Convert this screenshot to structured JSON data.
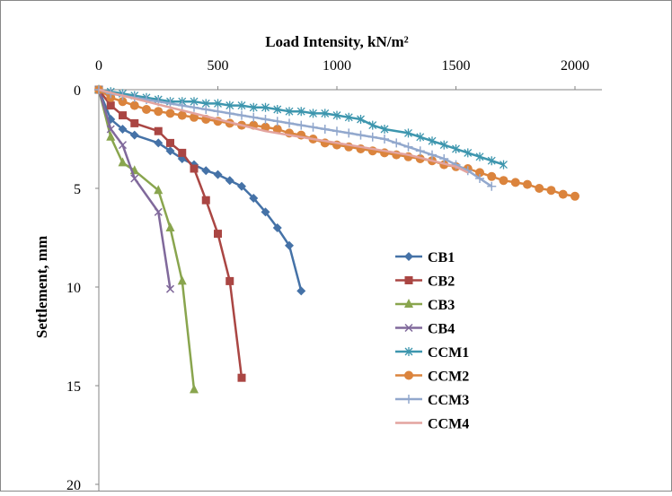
{
  "chart_data": {
    "type": "line",
    "xlabel": "Load Intensity, kN/m²",
    "ylabel": "Settlement, mm",
    "xlim": [
      0,
      2000
    ],
    "ylim": [
      0,
      20
    ],
    "y_inverted": true,
    "x_axis_position": "top",
    "xticks": [
      "0",
      "500",
      "1000",
      "1500",
      "2000"
    ],
    "yticks": [
      "0",
      "5",
      "10",
      "15",
      "20"
    ],
    "grid": false,
    "legend_position": "right-middle",
    "series": [
      {
        "name": "CB1",
        "color": "#4572A7",
        "marker": "diamond",
        "x": [
          0,
          50,
          100,
          150,
          250,
          300,
          350,
          400,
          450,
          500,
          550,
          600,
          650,
          700,
          750,
          800,
          850
        ],
        "y": [
          0,
          1.5,
          2.0,
          2.3,
          2.7,
          3.1,
          3.5,
          3.8,
          4.1,
          4.3,
          4.6,
          4.9,
          5.5,
          6.2,
          7.0,
          7.9,
          10.2
        ]
      },
      {
        "name": "CB2",
        "color": "#AA4643",
        "marker": "square",
        "x": [
          0,
          50,
          100,
          150,
          250,
          300,
          350,
          400,
          450,
          500,
          550,
          600
        ],
        "y": [
          0,
          0.8,
          1.3,
          1.7,
          2.1,
          2.7,
          3.2,
          4.0,
          5.6,
          7.3,
          9.7,
          14.6
        ]
      },
      {
        "name": "CB3",
        "color": "#89A54E",
        "marker": "triangle",
        "x": [
          0,
          50,
          100,
          150,
          250,
          300,
          350,
          400
        ],
        "y": [
          0,
          2.4,
          3.7,
          4.1,
          5.1,
          7.0,
          9.7,
          15.2
        ]
      },
      {
        "name": "CB4",
        "color": "#80699B",
        "marker": "x",
        "x": [
          0,
          50,
          100,
          150,
          250,
          300
        ],
        "y": [
          0,
          2.0,
          2.8,
          4.5,
          6.2,
          10.1
        ]
      },
      {
        "name": "CCM1",
        "color": "#3D96AE",
        "marker": "asterisk",
        "x": [
          0,
          50,
          100,
          150,
          200,
          250,
          300,
          350,
          400,
          450,
          500,
          550,
          600,
          650,
          700,
          750,
          800,
          850,
          900,
          950,
          1000,
          1050,
          1100,
          1150,
          1200,
          1300,
          1350,
          1400,
          1450,
          1500,
          1550,
          1600,
          1650,
          1700
        ],
        "y": [
          0,
          0.1,
          0.2,
          0.3,
          0.4,
          0.5,
          0.6,
          0.6,
          0.6,
          0.7,
          0.7,
          0.8,
          0.8,
          0.9,
          0.9,
          1.0,
          1.1,
          1.1,
          1.2,
          1.2,
          1.3,
          1.4,
          1.5,
          1.8,
          2.0,
          2.2,
          2.4,
          2.6,
          2.8,
          3.0,
          3.2,
          3.4,
          3.6,
          3.8
        ]
      },
      {
        "name": "CCM2",
        "color": "#DB843D",
        "marker": "circle",
        "x": [
          0,
          50,
          100,
          150,
          200,
          250,
          300,
          350,
          400,
          450,
          500,
          550,
          600,
          650,
          700,
          750,
          800,
          850,
          900,
          950,
          1000,
          1050,
          1100,
          1150,
          1200,
          1250,
          1300,
          1350,
          1400,
          1450,
          1500,
          1550,
          1600,
          1650,
          1700,
          1750,
          1800,
          1850,
          1900,
          1950,
          2000
        ],
        "y": [
          0,
          0.4,
          0.6,
          0.8,
          1.0,
          1.1,
          1.2,
          1.3,
          1.4,
          1.5,
          1.6,
          1.7,
          1.8,
          1.8,
          1.9,
          2.0,
          2.2,
          2.3,
          2.5,
          2.7,
          2.8,
          2.9,
          3.0,
          3.1,
          3.2,
          3.3,
          3.4,
          3.5,
          3.6,
          3.8,
          3.9,
          4.0,
          4.2,
          4.4,
          4.6,
          4.7,
          4.8,
          5.0,
          5.1,
          5.3,
          5.4
        ]
      },
      {
        "name": "CCM3",
        "color": "#92A8CD",
        "marker": "plus",
        "x": [
          0,
          50,
          100,
          150,
          200,
          250,
          300,
          350,
          400,
          450,
          500,
          550,
          600,
          650,
          700,
          750,
          800,
          850,
          900,
          950,
          1000,
          1050,
          1100,
          1150,
          1200,
          1250,
          1300,
          1350,
          1400,
          1450,
          1500,
          1550,
          1600,
          1650
        ],
        "y": [
          0,
          0.2,
          0.3,
          0.4,
          0.5,
          0.6,
          0.7,
          0.8,
          0.9,
          1.0,
          1.1,
          1.2,
          1.3,
          1.4,
          1.5,
          1.6,
          1.7,
          1.8,
          1.9,
          2.0,
          2.1,
          2.2,
          2.3,
          2.4,
          2.5,
          2.7,
          2.9,
          3.1,
          3.3,
          3.5,
          3.8,
          4.1,
          4.5,
          4.9
        ]
      },
      {
        "name": "CCM4",
        "color": "#E3A49F",
        "marker": "none",
        "x": [
          0,
          100,
          200,
          300,
          400,
          500,
          600,
          700,
          800,
          900,
          1000,
          1100,
          1200,
          1300,
          1400,
          1500,
          1550
        ],
        "y": [
          0,
          0.3,
          0.6,
          0.9,
          1.2,
          1.5,
          1.8,
          2.1,
          2.3,
          2.5,
          2.7,
          2.9,
          3.1,
          3.3,
          3.6,
          3.9,
          4.2
        ]
      }
    ]
  }
}
